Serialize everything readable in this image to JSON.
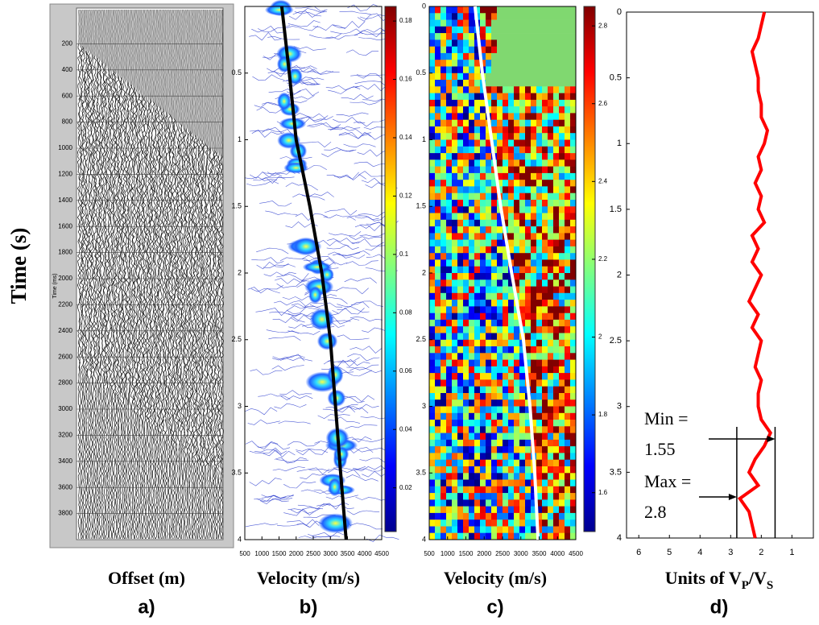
{
  "figure": {
    "ylabel": "Time (s)"
  },
  "chart_data": [
    {
      "type": "seismic",
      "ylabel": "Time (ms)",
      "ylim": [
        0,
        4000
      ],
      "yticks": [
        200,
        400,
        600,
        800,
        1000,
        1200,
        1400,
        1600,
        1800,
        2000,
        2200,
        2400,
        2600,
        2800,
        3000,
        3200,
        3400,
        3600,
        3800
      ],
      "xlabel": "Offset (m)",
      "panel_label": "a)"
    },
    {
      "type": "semblance",
      "xlim": [
        500,
        4500
      ],
      "xticks": [
        500,
        1000,
        1500,
        2000,
        2500,
        3000,
        3500,
        4000,
        4500
      ],
      "ylim": [
        0,
        4
      ],
      "yticks": [
        0.5,
        1,
        1.5,
        2,
        2.5,
        3,
        3.5,
        4
      ],
      "clim": [
        0.005,
        0.185
      ],
      "cticks": [
        0.02,
        0.04,
        0.06,
        0.08,
        0.1,
        0.12,
        0.14,
        0.16,
        0.18
      ],
      "curve": {
        "color": "#000000",
        "time": [
          0,
          0.5,
          1,
          1.5,
          2,
          2.5,
          3,
          3.5,
          4
        ],
        "velocity": [
          1580,
          1800,
          2000,
          2400,
          2750,
          3000,
          3150,
          3300,
          3460
        ]
      },
      "xlabel": "Velocity (m/s)",
      "panel_label": "b)"
    },
    {
      "type": "heatmap",
      "xlim": [
        500,
        4500
      ],
      "xticks": [
        500,
        1000,
        1500,
        2000,
        2500,
        3000,
        3500,
        4000,
        4500
      ],
      "ylim": [
        0,
        4
      ],
      "yticks": [
        0,
        0.5,
        1,
        1.5,
        2,
        2.5,
        3,
        3.5,
        4
      ],
      "clim": [
        1.5,
        2.85
      ],
      "cticks": [
        1.6,
        1.8,
        2,
        2.2,
        2.4,
        2.6,
        2.8
      ],
      "curve": {
        "color": "#ffffff",
        "time": [
          0,
          0.5,
          1,
          1.5,
          2,
          2.5,
          3,
          3.5,
          4
        ],
        "velocity": [
          1750,
          1950,
          2200,
          2450,
          2750,
          3070,
          3250,
          3380,
          3470
        ]
      },
      "xlabel": "Velocity (m/s)",
      "panel_label": "c)"
    },
    {
      "type": "line",
      "xlim": [
        6.4,
        0.3
      ],
      "xticks": [
        6,
        5,
        4,
        3,
        2,
        1
      ],
      "ylim": [
        0,
        4
      ],
      "yticks": [
        0,
        0.5,
        1,
        1.5,
        2,
        2.5,
        3,
        3.5,
        4
      ],
      "color": "#ff0000",
      "y": [
        0,
        0.1,
        0.2,
        0.3,
        0.4,
        0.5,
        0.6,
        0.7,
        0.8,
        0.9,
        1,
        1.1,
        1.2,
        1.3,
        1.4,
        1.5,
        1.6,
        1.7,
        1.8,
        1.9,
        2,
        2.1,
        2.2,
        2.3,
        2.4,
        2.5,
        2.6,
        2.7,
        2.8,
        2.9,
        3,
        3.1,
        3.2,
        3.3,
        3.4,
        3.5,
        3.6,
        3.7,
        3.8,
        3.9,
        4
      ],
      "values": [
        1.9,
        2.0,
        2.1,
        2.3,
        2.2,
        2.1,
        2.1,
        2.0,
        2.0,
        1.8,
        1.9,
        2.1,
        2.0,
        2.2,
        2.0,
        2.1,
        1.9,
        2.3,
        2.1,
        2.3,
        2.0,
        2.2,
        2.4,
        2.1,
        2.3,
        2.0,
        2.1,
        2.2,
        2.0,
        2.1,
        2.1,
        2.0,
        1.7,
        1.9,
        2.2,
        2.4,
        2.1,
        2.7,
        2.4,
        2.3,
        2.2
      ],
      "annotations": [
        {
          "lines": [
            "Min =",
            "1.55"
          ],
          "value": 1.55
        },
        {
          "lines": [
            "Max =",
            "2.8"
          ],
          "value": 2.8
        }
      ],
      "xlabel": [
        "Units of V",
        "P",
        "/V",
        "S"
      ],
      "panel_label": "d)"
    }
  ]
}
